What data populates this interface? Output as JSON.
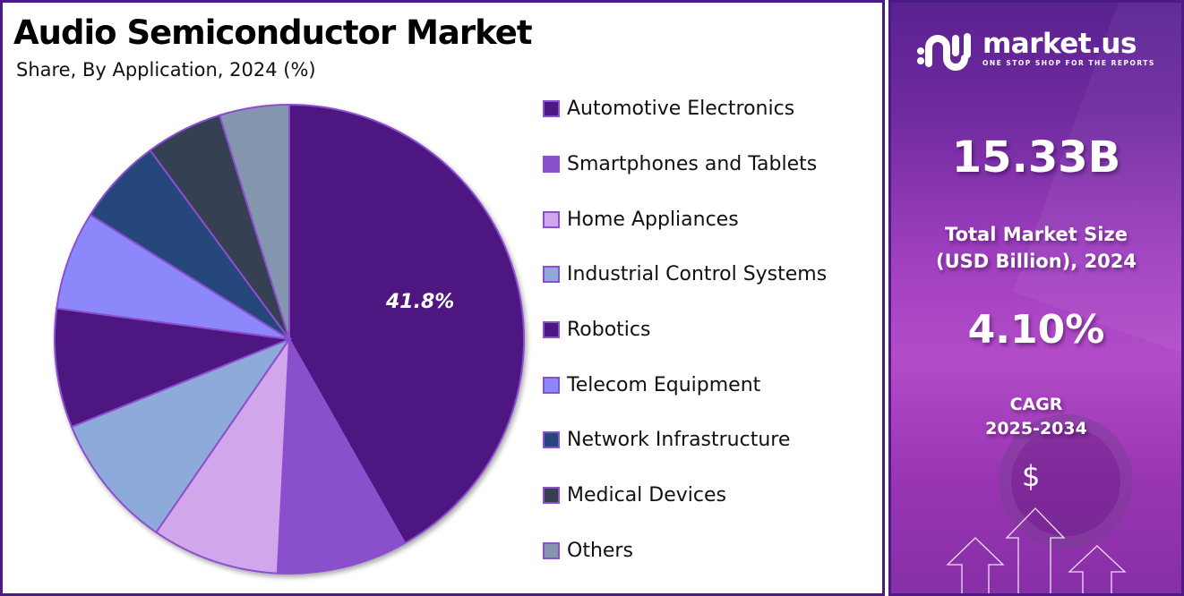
{
  "header": {
    "title": "Audio Semiconductor Market",
    "subtitle": "Share, By Application, 2024 (%)"
  },
  "chart_data": {
    "type": "pie",
    "title": "Audio Semiconductor Market",
    "subtitle": "Share, By Application, 2024 (%)",
    "categories": [
      "Automotive Electronics",
      "Smartphones and Tablets",
      "Home Appliances",
      "Industrial Control Systems",
      "Robotics",
      "Telecom Equipment",
      "Network Infrastructure",
      "Medical Devices",
      "Others"
    ],
    "values": [
      41.8,
      9.0,
      8.8,
      9.3,
      8.2,
      6.8,
      6.0,
      5.3,
      4.8
    ],
    "colors": [
      "#4e1680",
      "#8a4fcb",
      "#d2a6ea",
      "#8eaadb",
      "#4e1680",
      "#8c88fc",
      "#27467c",
      "#343f52",
      "#8496ae"
    ],
    "data_labels": [
      {
        "category": "Automotive Electronics",
        "text": "41.8%"
      }
    ],
    "legend_position": "right",
    "start_angle": "12 o'clock, clockwise"
  },
  "pie": {
    "highlight_label": "41.8%",
    "slice_border_color": "#8b4fcf"
  },
  "legend": {
    "items": [
      {
        "label": "Automotive Electronics",
        "color": "#4e1680"
      },
      {
        "label": "Smartphones and Tablets",
        "color": "#8a4fcb"
      },
      {
        "label": "Home Appliances",
        "color": "#d2a6ea"
      },
      {
        "label": "Industrial Control Systems",
        "color": "#8eaadb"
      },
      {
        "label": "Robotics",
        "color": "#4e1680"
      },
      {
        "label": "Telecom Equipment",
        "color": "#8c88fc"
      },
      {
        "label": "Network Infrastructure",
        "color": "#27467c"
      },
      {
        "label": "Medical Devices",
        "color": "#343f52"
      },
      {
        "label": "Others",
        "color": "#8496ae"
      }
    ]
  },
  "sidebar": {
    "brand": {
      "name": "market.us",
      "tagline": "ONE STOP SHOP FOR THE REPORTS"
    },
    "market_size": {
      "value": "15.33B",
      "label_line1": "Total Market Size",
      "label_line2": "(USD Billion), 2024"
    },
    "cagr": {
      "value": "4.10%",
      "label_line1": "CAGR",
      "label_line2": "2025-2034"
    },
    "icon_symbol": "$"
  },
  "colors": {
    "frame": "#4b1a87",
    "accent": "#8b4fcf"
  }
}
